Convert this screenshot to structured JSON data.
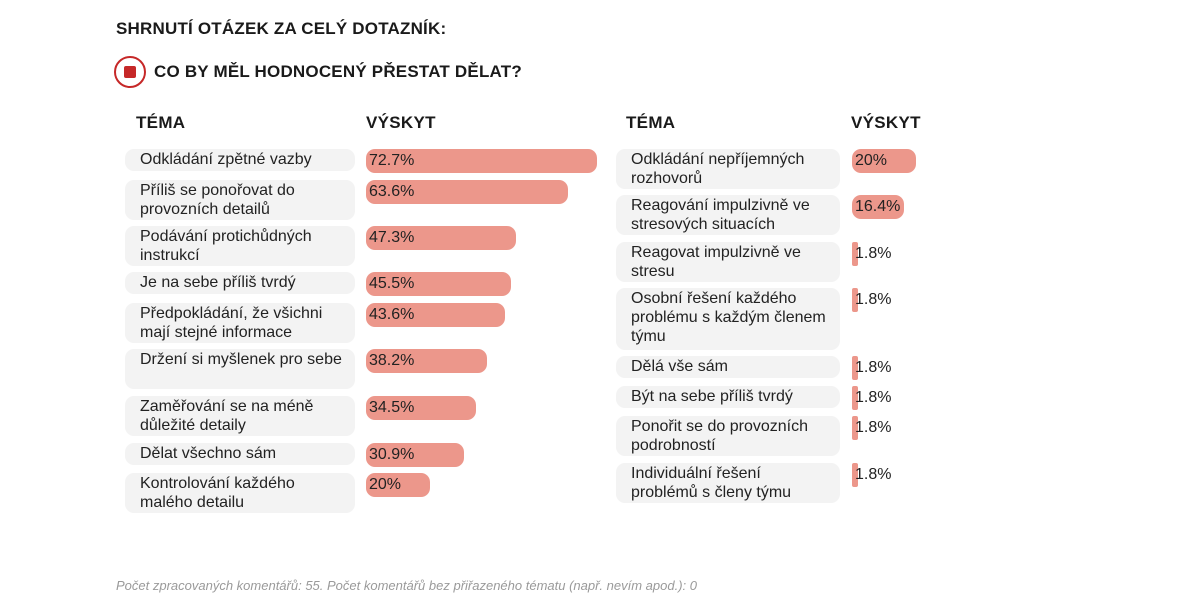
{
  "header": {
    "title": "SHRNUTÍ OTÁZEK ZA CELÝ DOTAZNÍK:",
    "question": "CO BY MĚL HODNOCENÝ PŘESTAT DĚLAT?"
  },
  "columns": {
    "theme": "TÉMA",
    "occurrence": "VÝSKYT"
  },
  "colors": {
    "bar": "#ec978b",
    "badge": "#c62828",
    "theme_bg": "#f3f3f3"
  },
  "chart_data": [
    {
      "type": "bar",
      "orientation": "horizontal",
      "categories": [
        "Odkládání zpětné vazby",
        "Příliš se ponořovat do provozních detailů",
        "Podávání protichůdných instrukcí",
        "Je na sebe příliš tvrdý",
        "Předpokládání, že všichni mají stejné informace",
        "Držení si myšlenek pro sebe",
        "Zaměřování se na méně důležité detaily",
        "Dělat všechno sám",
        "Kontrolování každého malého detailu"
      ],
      "values": [
        72.7,
        63.6,
        47.3,
        45.5,
        43.6,
        38.2,
        34.5,
        30.9,
        20
      ],
      "labels": [
        "72.7%",
        "63.6%",
        "47.3%",
        "45.5%",
        "43.6%",
        "38.2%",
        "34.5%",
        "30.9%",
        "20%"
      ],
      "xlim": [
        0,
        72.7
      ]
    },
    {
      "type": "bar",
      "orientation": "horizontal",
      "categories": [
        "Odkládání nepříjemných rozhovorů",
        "Reagování impulzivně ve stresových situacích",
        "Reagovat impulzivně ve stresu",
        "Osobní řešení každého problému s každým členem týmu",
        "Dělá vše sám",
        "Být na sebe příliš tvrdý",
        "Ponořit se do provozních podrobností",
        "Individuální řešení problémů s členy týmu"
      ],
      "values": [
        20,
        16.4,
        1.8,
        1.8,
        1.8,
        1.8,
        1.8,
        1.8
      ],
      "labels": [
        "20%",
        "16.4%",
        "1.8%",
        "1.8%",
        "1.8%",
        "1.8%",
        "1.8%",
        "1.8%"
      ],
      "xlim": [
        0,
        72.7
      ]
    }
  ],
  "footer": "Počet zpracovaných komentářů: 55. Počet komentářů bez přiřazeného tématu (např. nevím apod.): 0"
}
